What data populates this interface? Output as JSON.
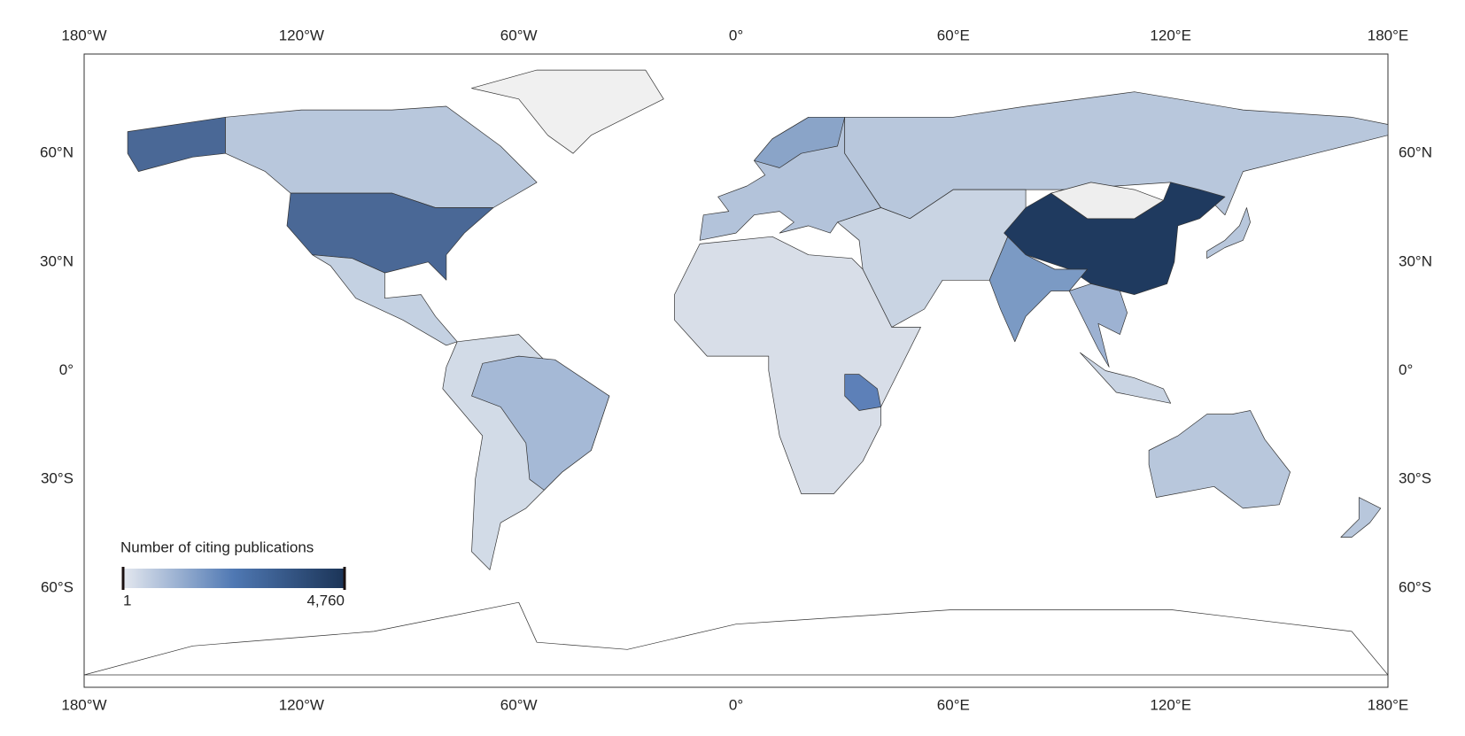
{
  "map": {
    "lon_ticks": [
      {
        "value": -180,
        "label": "180°W"
      },
      {
        "value": -120,
        "label": "120°W"
      },
      {
        "value": -60,
        "label": "60°W"
      },
      {
        "value": 0,
        "label": "0°"
      },
      {
        "value": 60,
        "label": "60°E"
      },
      {
        "value": 120,
        "label": "120°E"
      },
      {
        "value": 180,
        "label": "180°E"
      }
    ],
    "lat_ticks": [
      {
        "value": 60,
        "label": "60°N"
      },
      {
        "value": 30,
        "label": "30°N"
      },
      {
        "value": 0,
        "label": "0°"
      },
      {
        "value": -30,
        "label": "30°S"
      },
      {
        "value": -60,
        "label": "60°S"
      }
    ],
    "legend": {
      "title": "Number of citing publications",
      "min": {
        "value": 1,
        "label": "1"
      },
      "max": {
        "value": 4760,
        "label": "4,760"
      },
      "colors": [
        "#e4e8ef",
        "#4f78b3",
        "#1b3457"
      ]
    }
  }
}
